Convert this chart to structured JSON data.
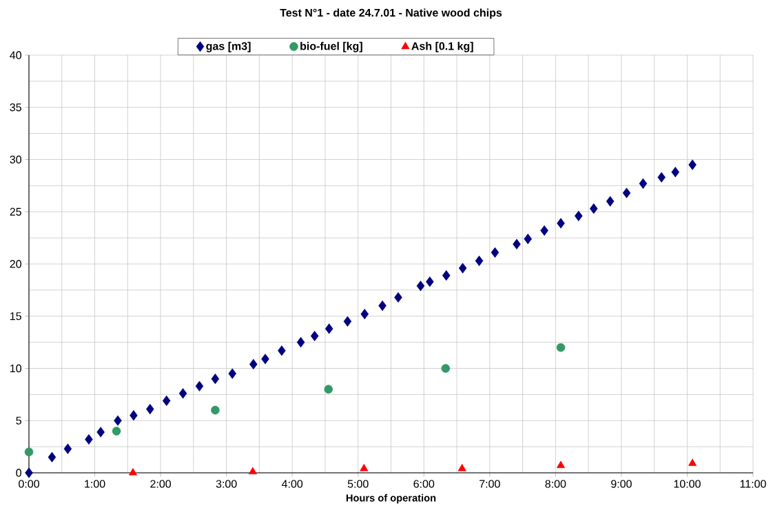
{
  "chart_data": {
    "type": "scatter",
    "title": "Test N°1 - date 24.7.01 - Native wood chips",
    "xlabel": "Hours of operation",
    "xlim": [
      0,
      11
    ],
    "ylim": [
      0,
      40
    ],
    "xticks": [
      {
        "value": 0,
        "label": "0:00"
      },
      {
        "value": 1,
        "label": "1:00"
      },
      {
        "value": 2,
        "label": "2:00"
      },
      {
        "value": 3,
        "label": "3:00"
      },
      {
        "value": 4,
        "label": "4:00"
      },
      {
        "value": 5,
        "label": "5:00"
      },
      {
        "value": 6,
        "label": "6:00"
      },
      {
        "value": 7,
        "label": "7:00"
      },
      {
        "value": 8,
        "label": "8:00"
      },
      {
        "value": 9,
        "label": "9:00"
      },
      {
        "value": 10,
        "label": "10:00"
      },
      {
        "value": 11,
        "label": "11:00"
      }
    ],
    "yticks": [
      0,
      5,
      10,
      15,
      20,
      25,
      30,
      35,
      40
    ],
    "grid": true,
    "legend": "top",
    "series": [
      {
        "name": "gas [m3]",
        "color": "#000080",
        "marker": "diamond",
        "x": [
          0,
          0.35,
          0.59,
          0.91,
          1.09,
          1.35,
          1.59,
          1.84,
          2.09,
          2.34,
          2.59,
          2.83,
          3.09,
          3.41,
          3.59,
          3.84,
          4.13,
          4.34,
          4.56,
          4.84,
          5.1,
          5.37,
          5.61,
          5.95,
          6.09,
          6.34,
          6.59,
          6.84,
          7.08,
          7.41,
          7.58,
          7.83,
          8.08,
          8.35,
          8.58,
          8.83,
          9.08,
          9.33,
          9.61,
          9.82,
          10.08
        ],
        "values": [
          0,
          1.5,
          2.3,
          3.2,
          3.9,
          5.0,
          5.5,
          6.1,
          6.9,
          7.6,
          8.3,
          9.0,
          9.5,
          10.4,
          10.9,
          11.7,
          12.5,
          13.1,
          13.8,
          14.5,
          15.2,
          16.0,
          16.8,
          17.9,
          18.3,
          18.9,
          19.6,
          20.3,
          21.1,
          21.9,
          22.4,
          23.2,
          23.9,
          24.6,
          25.3,
          26.0,
          26.8,
          27.7,
          28.3,
          28.8,
          29.5
        ]
      },
      {
        "name": "bio-fuel [kg]",
        "color": "#339966",
        "marker": "circle",
        "x": [
          0,
          1.33,
          2.83,
          4.55,
          6.33,
          8.08
        ],
        "values": [
          2,
          4,
          6,
          8,
          10,
          12
        ]
      },
      {
        "name": "Ash [0.1 kg]",
        "color": "#ff0000",
        "marker": "triangle",
        "x": [
          1.58,
          3.4,
          5.09,
          6.58,
          8.08,
          10.08
        ],
        "values": [
          0,
          0.1,
          0.4,
          0.4,
          0.7,
          0.9
        ]
      }
    ]
  }
}
